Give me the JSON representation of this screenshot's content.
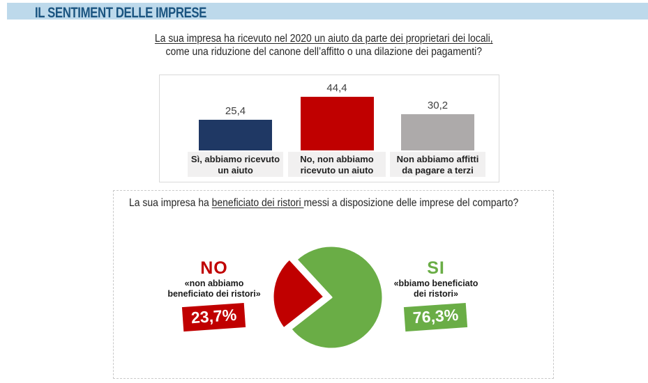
{
  "header": {
    "title": "IL SENTIMENT DELLE IMPRESE"
  },
  "questions": {
    "q1_line1": "La sua impresa ha ricevuto nel 2020 un aiuto da parte dei proprietari dei locali,",
    "q1_line2": "come una riduzione del canone dell’affitto o una dilazione dei pagamenti?",
    "q2_prefix": "La sua impresa ha ",
    "q2_underlined": "beneficiato dei ristori ",
    "q2_suffix": "messi a disposizione delle imprese del comparto?"
  },
  "chart_data": [
    {
      "type": "bar",
      "title": "La sua impresa ha ricevuto nel 2020 un aiuto da parte dei proprietari dei locali, come una riduzione del canone dell’affitto o una dilazione dei pagamenti?",
      "categories": [
        [
          "Sì, abbiamo ricevuto",
          "un aiuto"
        ],
        [
          "No, non abbiamo",
          "ricevuto un aiuto"
        ],
        [
          "Non abbiamo affitti",
          "da pagare a terzi"
        ]
      ],
      "values": [
        25.4,
        44.4,
        30.2
      ],
      "value_labels": [
        "25,4",
        "44,4",
        "30,2"
      ],
      "colors": [
        "#1F3864",
        "#C00000",
        "#ADAAAA"
      ],
      "ylim": [
        0,
        50
      ],
      "grid": false,
      "legend": false,
      "data_labels_position": "above bars"
    },
    {
      "type": "pie",
      "title": "La sua impresa ha beneficiato dei ristori messi a disposizione delle imprese del comparto?",
      "labels": [
        "SI",
        "NO"
      ],
      "values": [
        76.3,
        23.7
      ],
      "value_labels": [
        "76,3%",
        "23,7%"
      ],
      "colors": [
        "#6AAD46",
        "#C00000"
      ],
      "exploded_slice": "NO",
      "annotations": {
        "no": {
          "label": "NO",
          "caption": [
            "«non abbiamo",
            "beneficiato dei ristori»"
          ],
          "badge": "23,7%"
        },
        "si": {
          "label": "SI",
          "caption": [
            "«bbiamo beneficiato",
            "dei ristori»"
          ],
          "badge": "76,3%"
        }
      }
    }
  ],
  "colors": {
    "header_band": "#BDD9EB",
    "header_text": "#1A5480",
    "bar_navy": "#1F3864",
    "bar_red": "#C00000",
    "bar_gray": "#ADAAAA",
    "pie_green": "#6AAD46",
    "pie_red": "#C00000",
    "category_band": "#F1F0F0",
    "panel_border": "#D9D9D9",
    "dashed_border": "#C9C9C9"
  }
}
